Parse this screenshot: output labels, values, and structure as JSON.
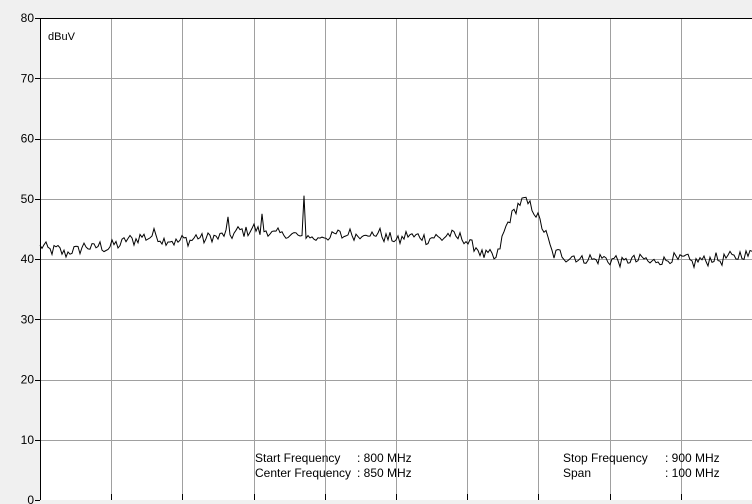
{
  "chart_data": {
    "type": "line",
    "ylabel": "dBuV",
    "xlim": [
      800,
      900
    ],
    "ylim": [
      0,
      80
    ],
    "y_ticks": [
      "80",
      "70",
      "60",
      "50",
      "40",
      "30",
      "20",
      "10",
      "0"
    ],
    "grid": true,
    "x_divisions": 10,
    "colors": {
      "plot_bg": "#ffffff",
      "grid": "#a0a0a0",
      "trace": "#000000",
      "frame": "#000000"
    },
    "info": {
      "start_label": "Start Frequency",
      "start_value": ": 800 MHz",
      "center_label": "Center Frequency",
      "center_value": ": 850 MHz",
      "stop_label": "Stop Frequency",
      "stop_value": ": 900 MHz",
      "span_label": "Span",
      "span_value": ": 100 MHz"
    },
    "series": [
      {
        "x": [
          800,
          802,
          804,
          806,
          808,
          810,
          812,
          814,
          816,
          818,
          820,
          822,
          824,
          826,
          828,
          830,
          832,
          834,
          836,
          838,
          840,
          842,
          844,
          846,
          848,
          850,
          852,
          854,
          856,
          858,
          860,
          862,
          864,
          866,
          868,
          870,
          872,
          874,
          876,
          878,
          880,
          882,
          884,
          886,
          888,
          890,
          892,
          894,
          896,
          898,
          900
        ],
        "values": [
          42,
          41.5,
          41,
          42,
          42,
          42,
          43,
          43.5,
          44,
          43,
          43,
          43.5,
          43.5,
          44,
          44.5,
          45,
          44.5,
          44,
          44,
          43.5,
          43.5,
          44,
          44,
          44.5,
          44,
          43,
          44,
          43.5,
          43.5,
          44,
          43,
          41,
          40,
          47,
          50,
          47,
          41,
          40.5,
          40,
          40,
          40,
          39.5,
          40,
          39.5,
          40,
          40,
          39.5,
          40,
          40,
          40.5,
          41
        ],
        "peaks": [
          [
            837,
            50.5
          ],
          [
            831.2,
            47.5
          ],
          [
            826.3,
            47
          ],
          [
            843.3,
            44
          ],
          [
            846.2,
            43.8
          ]
        ]
      }
    ]
  }
}
